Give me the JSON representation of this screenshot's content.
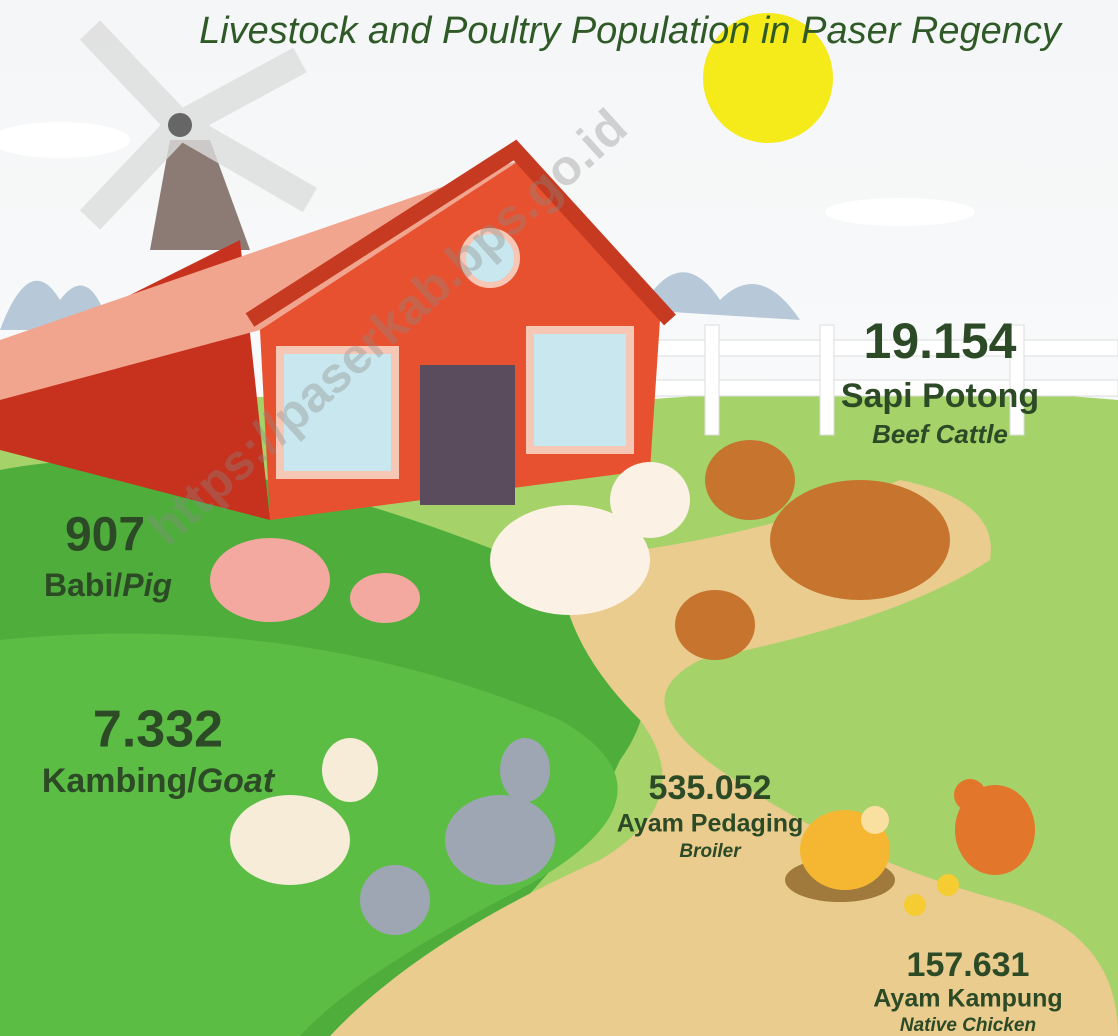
{
  "header": {
    "title": "Livestock and Poultry Population in Paser Regency",
    "watermark": "https://paserkab.bps.go.id"
  },
  "items": [
    {
      "value": "19.154",
      "local": "Sapi Potong",
      "english": "Beef Cattle"
    },
    {
      "value": "907",
      "local": "Babi/",
      "english": "Pig"
    },
    {
      "value": "7.332",
      "local": "Kambing/",
      "english": "Goat"
    },
    {
      "value": "535.052",
      "local": "Ayam Pedaging",
      "english": "Broiler"
    },
    {
      "value": "157.631",
      "local": "Ayam Kampung",
      "english": "Native Chicken"
    }
  ]
}
